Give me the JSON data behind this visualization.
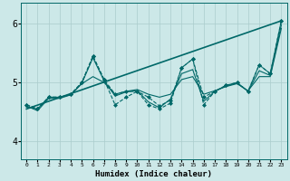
{
  "title": "",
  "xlabel": "Humidex (Indice chaleur)",
  "ylabel": "",
  "xlim": [
    -0.5,
    23.5
  ],
  "ylim": [
    3.7,
    6.35
  ],
  "yticks": [
    4,
    5,
    6
  ],
  "xticks": [
    0,
    1,
    2,
    3,
    4,
    5,
    6,
    7,
    8,
    9,
    10,
    11,
    12,
    13,
    14,
    15,
    16,
    17,
    18,
    19,
    20,
    21,
    22,
    23
  ],
  "bg_color": "#cce8e8",
  "grid_color": "#aacccc",
  "line_color": "#006868",
  "lines": [
    {
      "x": [
        0,
        1,
        2,
        3,
        4,
        5,
        6,
        7,
        8,
        9,
        10,
        11,
        12,
        13,
        14,
        15,
        16,
        17,
        18,
        19,
        20,
        21,
        22,
        23
      ],
      "y": [
        4.62,
        4.55,
        4.75,
        4.75,
        4.8,
        5.0,
        5.45,
        5.05,
        4.8,
        4.85,
        4.85,
        4.75,
        4.6,
        4.7,
        5.25,
        5.4,
        4.75,
        4.85,
        4.95,
        5.0,
        4.85,
        5.3,
        5.15,
        6.05
      ],
      "marker": "D",
      "markersize": 2.0,
      "linewidth": 0.8,
      "linestyle": "--"
    },
    {
      "x": [
        0,
        1,
        2,
        3,
        4,
        5,
        6,
        7,
        8,
        9,
        10,
        11,
        12,
        13,
        14,
        15,
        16,
        17,
        18,
        19,
        20,
        21,
        22,
        23
      ],
      "y": [
        4.62,
        4.55,
        4.75,
        4.75,
        4.8,
        5.0,
        5.45,
        5.05,
        4.62,
        4.75,
        4.85,
        4.62,
        4.55,
        4.65,
        5.25,
        5.4,
        4.62,
        4.85,
        4.95,
        5.0,
        4.85,
        5.3,
        5.15,
        6.05
      ],
      "marker": "D",
      "markersize": 2.0,
      "linewidth": 0.8,
      "linestyle": "--"
    },
    {
      "x": [
        0,
        23
      ],
      "y": [
        4.55,
        6.05
      ],
      "marker": null,
      "markersize": 0,
      "linewidth": 1.2,
      "linestyle": "-"
    },
    {
      "x": [
        0,
        1,
        2,
        3,
        4,
        5,
        6,
        7,
        8,
        9,
        10,
        11,
        12,
        13,
        14,
        15,
        16,
        17,
        18,
        19,
        20,
        21,
        22,
        23
      ],
      "y": [
        4.58,
        4.55,
        4.75,
        4.75,
        4.79,
        4.98,
        5.1,
        5.0,
        4.8,
        4.85,
        4.88,
        4.8,
        4.75,
        4.8,
        5.05,
        5.1,
        4.8,
        4.86,
        4.93,
        4.98,
        4.86,
        5.1,
        5.1,
        5.92
      ],
      "marker": null,
      "markersize": 0,
      "linewidth": 0.8,
      "linestyle": "-"
    },
    {
      "x": [
        0,
        1,
        2,
        3,
        4,
        5,
        6,
        7,
        8,
        9,
        10,
        11,
        12,
        13,
        14,
        15,
        16,
        17,
        18,
        19,
        20,
        21,
        22,
        23
      ],
      "y": [
        4.6,
        4.52,
        4.73,
        4.73,
        4.79,
        4.99,
        5.42,
        5.03,
        4.77,
        4.84,
        4.86,
        4.67,
        4.57,
        4.72,
        5.15,
        5.22,
        4.68,
        4.85,
        4.94,
        4.99,
        4.85,
        5.2,
        5.12,
        5.98
      ],
      "marker": null,
      "markersize": 0,
      "linewidth": 0.8,
      "linestyle": "-"
    }
  ]
}
